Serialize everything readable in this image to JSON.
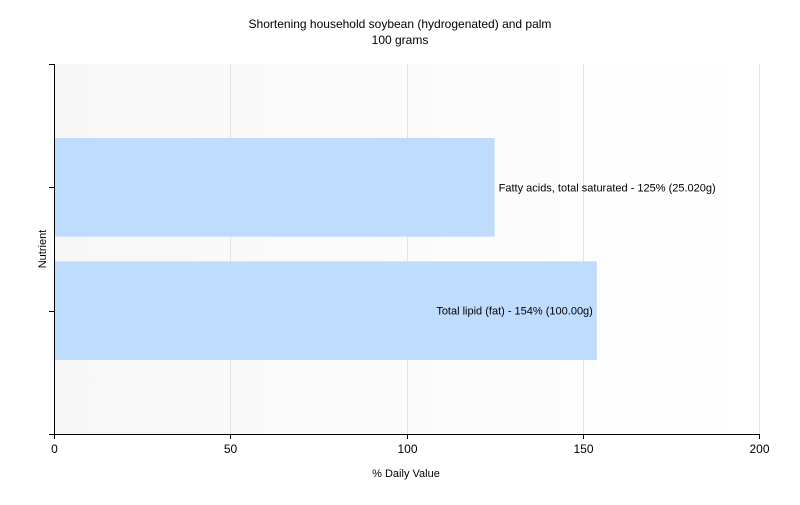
{
  "chart_data": {
    "type": "bar",
    "orientation": "horizontal",
    "title": "Shortening household soybean (hydrogenated) and palm",
    "subtitle": "100 grams",
    "xlabel": "% Daily Value",
    "ylabel": "Nutrient",
    "xlim": [
      0,
      200
    ],
    "x_ticks": [
      0,
      50,
      100,
      150,
      200
    ],
    "grid": true,
    "legend": "none",
    "categories": [
      "Total lipid (fat)",
      "Fatty acids, total saturated"
    ],
    "values": [
      154,
      125
    ],
    "data_labels": [
      "Total lipid (fat) - 154% (100.00g)",
      "Fatty acids, total saturated - 125% (25.020g)"
    ],
    "colors": {
      "bar": "#bfdcff",
      "grid": "#e2e2e2",
      "axis": "#000000"
    }
  }
}
